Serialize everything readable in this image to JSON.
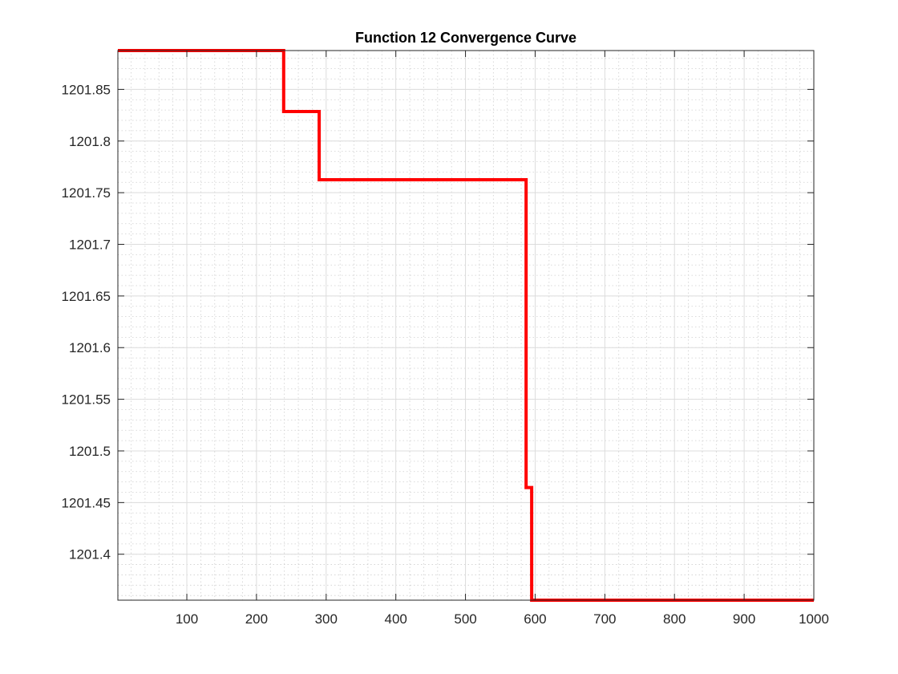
{
  "chart_data": {
    "type": "line",
    "title": "Function 12 Convergence Curve",
    "xlabel": "",
    "ylabel": "",
    "xlim": [
      1,
      1000
    ],
    "ylim": [
      1201.3555,
      1201.8876
    ],
    "grid": true,
    "minor_grid": true,
    "line_style": "stairs",
    "x_ticks": [
      100,
      200,
      300,
      400,
      500,
      600,
      700,
      800,
      900,
      1000
    ],
    "y_ticks": [
      1201.4,
      1201.45,
      1201.5,
      1201.55,
      1201.6,
      1201.65,
      1201.7,
      1201.75,
      1201.8,
      1201.85
    ],
    "series": [
      {
        "color": "#ff0000",
        "x": [
          1,
          239,
          239,
          290,
          290,
          587,
          587,
          595,
          595,
          1000
        ],
        "y": [
          1201.8876,
          1201.8876,
          1201.8286,
          1201.8286,
          1201.7625,
          1201.7625,
          1201.4645,
          1201.4645,
          1201.3555,
          1201.3555
        ]
      }
    ]
  }
}
